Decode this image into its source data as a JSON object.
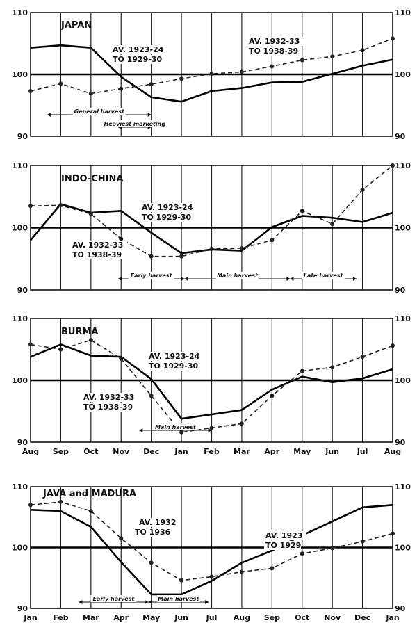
{
  "chart_data": [
    {
      "type": "line",
      "title": "JAPAN",
      "x_labels": [],
      "ylim": [
        90,
        110
      ],
      "yticks": [
        "110",
        "100",
        "90"
      ],
      "reference_line": 100,
      "series": [
        {
          "name": "AV. 1923-24 TO 1929-30",
          "style": "solid",
          "values": [
            104.3,
            104.7,
            104.3,
            99.6,
            96.3,
            95.6,
            97.3,
            97.8,
            98.7,
            98.8,
            100.1,
            101.4,
            102.4
          ]
        },
        {
          "name": "AV. 1932-33 TO 1938-39",
          "style": "dashed",
          "values": [
            97.3,
            98.5,
            96.9,
            97.7,
            98.4,
            99.3,
            100.1,
            100.4,
            101.3,
            102.3,
            102.9,
            103.9,
            105.8
          ]
        }
      ],
      "annotations": [
        {
          "text": "General harvest",
          "from": 0.55,
          "to": 4.0
        },
        {
          "text": "Heaviest marketing",
          "from": 2.9,
          "to": 4.0
        }
      ]
    },
    {
      "type": "line",
      "title": "INDO-CHINA",
      "x_labels": [],
      "ylim": [
        90,
        110
      ],
      "yticks": [
        "110",
        "100",
        "90"
      ],
      "reference_line": 100,
      "series": [
        {
          "name": "AV. 1923-24 TO 1929-30",
          "style": "solid",
          "values": [
            98.0,
            103.8,
            102.4,
            102.7,
            99.2,
            95.9,
            96.5,
            96.3,
            100.1,
            101.9,
            101.6,
            100.9,
            102.4
          ]
        },
        {
          "name": "AV. 1932-33 TO 1938-39",
          "style": "dashed",
          "values": [
            103.5,
            103.6,
            102.2,
            98.2,
            95.4,
            95.4,
            96.6,
            96.7,
            98.0,
            102.7,
            100.6,
            106.1,
            110.0
          ]
        }
      ],
      "annotations": [
        {
          "text": "Early harvest",
          "from": 2.9,
          "to": 5.1
        },
        {
          "text": "Main harvest",
          "from": 5.1,
          "to": 8.6
        },
        {
          "text": "Late harvest",
          "from": 8.6,
          "to": 10.8
        }
      ]
    },
    {
      "type": "line",
      "title": "BURMA",
      "x_labels": [
        "Aug",
        "Sep",
        "Oct",
        "Nov",
        "Dec",
        "Jan",
        "Feb",
        "Mar",
        "Apr",
        "May",
        "Jun",
        "Jul",
        "Aug"
      ],
      "ylim": [
        90,
        110
      ],
      "yticks": [
        "110",
        "100",
        "90"
      ],
      "reference_line": 100,
      "series": [
        {
          "name": "AV. 1923-24 TO 1929-30",
          "style": "solid",
          "values": [
            103.8,
            105.8,
            104.0,
            103.8,
            100.2,
            93.8,
            94.5,
            95.2,
            98.5,
            100.6,
            99.7,
            100.3,
            101.8
          ]
        },
        {
          "name": "AV. 1932-33 TO 1938-39",
          "style": "dashed",
          "values": [
            105.8,
            105.0,
            106.5,
            103.5,
            97.5,
            91.6,
            92.3,
            93.0,
            97.5,
            101.5,
            102.1,
            103.8,
            105.6
          ]
        }
      ],
      "annotations": [
        {
          "text": "Main harvest",
          "from": 3.6,
          "to": 6.0
        }
      ]
    },
    {
      "type": "line",
      "title": "JAVA and MADURA",
      "x_labels": [
        "Jan",
        "Feb",
        "Mar",
        "Apr",
        "May",
        "Jun",
        "Jul",
        "Aug",
        "Sep",
        "Oct",
        "Nov",
        "Dec",
        "Jan"
      ],
      "ylim": [
        90,
        110
      ],
      "yticks": [
        "110",
        "100",
        "90"
      ],
      "reference_line": 100,
      "series": [
        {
          "name": "AV. 1932 TO 1936",
          "style": "dashed",
          "values": [
            107.0,
            107.5,
            106.0,
            101.5,
            97.5,
            94.6,
            95.2,
            96.0,
            96.6,
            99.0,
            99.9,
            101.0,
            102.3
          ]
        },
        {
          "name": "AV. 1923 TO 1929",
          "style": "solid",
          "values": [
            106.2,
            106.0,
            103.4,
            97.6,
            92.3,
            92.3,
            94.5,
            97.5,
            99.5,
            102.0,
            104.3,
            106.6,
            107.0
          ]
        }
      ],
      "annotations": [
        {
          "text": "Early harvest",
          "from": 1.6,
          "to": 3.9
        },
        {
          "text": "Main harvest",
          "from": 3.9,
          "to": 5.9
        }
      ]
    }
  ]
}
